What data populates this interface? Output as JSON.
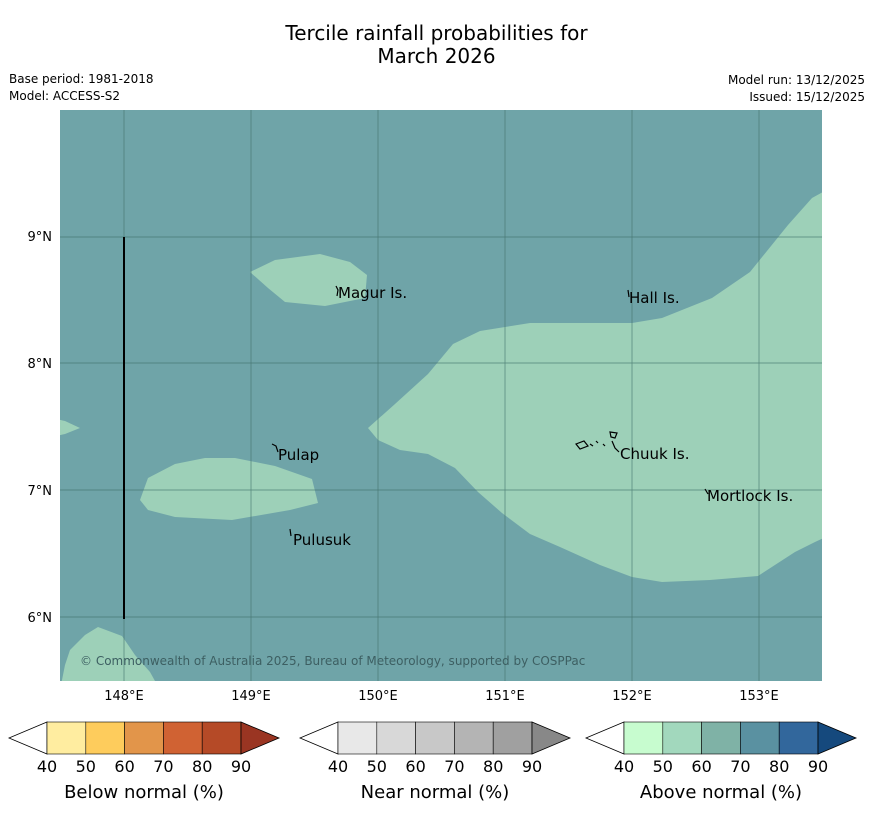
{
  "header": {
    "title_line1": "Tercile rainfall probabilities for",
    "title_line2": "March 2026",
    "base_period": "Base period: 1981-2018",
    "model": "Model: ACCESS-S2",
    "model_run": "Model run: 13/12/2025",
    "issued": "Issued: 15/12/2025"
  },
  "map": {
    "background_color": "#6fa4a8",
    "region_color": "#9dd0b8",
    "lon_labels": [
      "148°E",
      "149°E",
      "150°E",
      "151°E",
      "152°E",
      "153°E"
    ],
    "lat_labels": [
      "9°N",
      "8°N",
      "7°N",
      "6°N"
    ],
    "places": [
      {
        "name": "Magur Is."
      },
      {
        "name": "Hall Is."
      },
      {
        "name": "Pulap"
      },
      {
        "name": "Chuuk Is."
      },
      {
        "name": "Mortlock Is."
      },
      {
        "name": "Pulusuk"
      }
    ],
    "copyright": "© Commonwealth of Australia 2025, Bureau of Meteorology, supported by COSPPac"
  },
  "colorbars": [
    {
      "label": "Below normal (%)",
      "ticks": [
        "40",
        "50",
        "60",
        "70",
        "80",
        "90"
      ],
      "colors": [
        "#ffffff",
        "#ffeda0",
        "#fecc5c",
        "#e2954a",
        "#d06233",
        "#b54a27",
        "#9a3522"
      ]
    },
    {
      "label": "Near normal (%)",
      "ticks": [
        "40",
        "50",
        "60",
        "70",
        "80",
        "90"
      ],
      "colors": [
        "#ffffff",
        "#e8e8e8",
        "#d8d8d8",
        "#c8c8c8",
        "#b4b4b4",
        "#a0a0a0",
        "#888888"
      ]
    },
    {
      "label": "Above normal (%)",
      "ticks": [
        "40",
        "50",
        "60",
        "70",
        "80",
        "90"
      ],
      "colors": [
        "#ffffff",
        "#c7fccf",
        "#a2d8bd",
        "#7fb2a6",
        "#5a91a1",
        "#32679c",
        "#15497d"
      ]
    }
  ]
}
